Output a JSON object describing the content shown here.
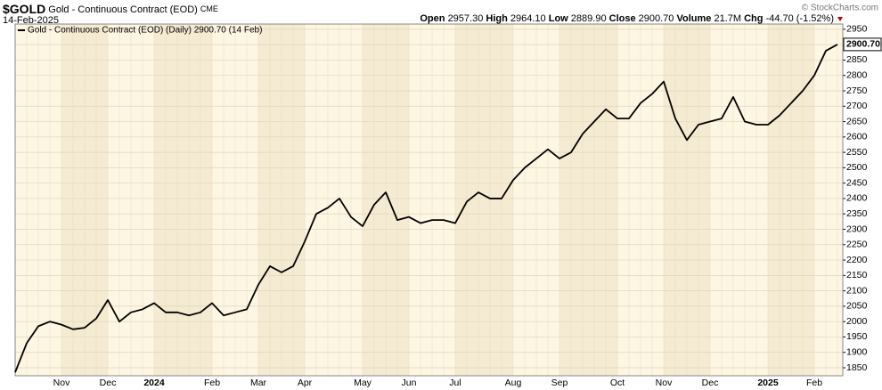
{
  "header": {
    "symbol": "$GOLD",
    "name": "Gold - Continuous Contract (EOD)",
    "exchange": "CME",
    "date": "14-Feb-2025",
    "open_label": "Open",
    "open": "2957.30",
    "high_label": "High",
    "high": "2964.10",
    "low_label": "Low",
    "low": "2889.90",
    "close_label": "Close",
    "close": "2900.70",
    "volume_label": "Volume",
    "volume": "21.7M",
    "chg_label": "Chg",
    "chg": "-44.70 (-1.52%)",
    "logo": "© StockCharts.com"
  },
  "chart_data": {
    "type": "line",
    "legend": "Gold - Continuous Contract (EOD) (Daily) 2900.70 (14 Feb)",
    "last_label": "2900.70",
    "categories": [
      null,
      null,
      null,
      null,
      "Nov",
      null,
      null,
      null,
      "Dec",
      null,
      null,
      null,
      "2024",
      null,
      null,
      null,
      null,
      "Feb",
      null,
      null,
      null,
      "Mar",
      null,
      null,
      null,
      "Apr",
      null,
      null,
      null,
      null,
      "May",
      null,
      null,
      null,
      "Jun",
      null,
      null,
      null,
      "Jul",
      null,
      null,
      null,
      null,
      "Aug",
      null,
      null,
      null,
      "Sep",
      null,
      null,
      null,
      null,
      "Oct",
      null,
      null,
      null,
      "Nov",
      null,
      null,
      null,
      "Dec",
      null,
      null,
      null,
      null,
      "2025",
      null,
      null,
      null,
      "Feb",
      null,
      null
    ],
    "series": [
      {
        "name": "Gold - Continuous Contract (EOD)",
        "color": "#000000",
        "values": [
          1835,
          1930,
          1985,
          2000,
          1990,
          1975,
          1980,
          2010,
          2070,
          2000,
          2030,
          2040,
          2060,
          2030,
          2030,
          2020,
          2030,
          2060,
          2020,
          2030,
          2040,
          2120,
          2180,
          2160,
          2180,
          2260,
          2350,
          2370,
          2400,
          2340,
          2310,
          2380,
          2420,
          2330,
          2340,
          2320,
          2330,
          2330,
          2320,
          2390,
          2420,
          2400,
          2400,
          2460,
          2500,
          2530,
          2560,
          2530,
          2550,
          2610,
          2650,
          2690,
          2660,
          2660,
          2710,
          2740,
          2780,
          2660,
          2590,
          2640,
          2650,
          2660,
          2730,
          2650,
          2640,
          2640,
          2670,
          2710,
          2750,
          2800,
          2880,
          2900.7
        ]
      }
    ],
    "ylim": [
      1824,
      2967
    ],
    "yticks": [
      1850,
      1900,
      1950,
      2000,
      2050,
      2100,
      2150,
      2200,
      2250,
      2300,
      2350,
      2400,
      2450,
      2500,
      2550,
      2600,
      2650,
      2700,
      2750,
      2800,
      2850,
      2900,
      2950
    ],
    "grid": true
  }
}
